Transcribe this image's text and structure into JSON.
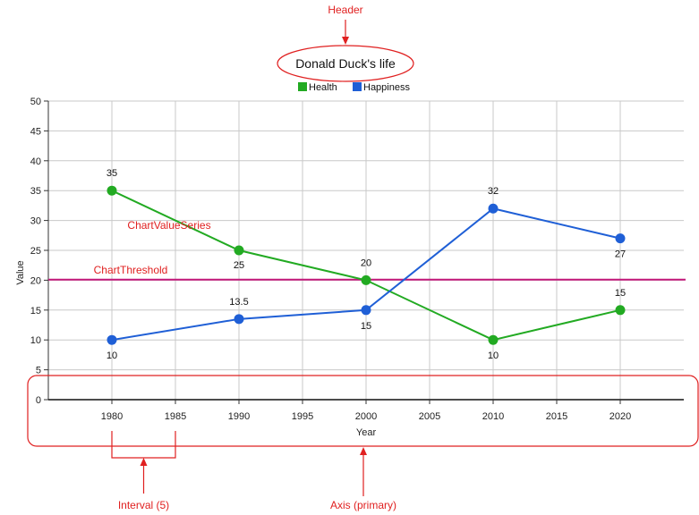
{
  "chart_data": {
    "type": "line",
    "title": "Donald Duck's life",
    "xlabel": "Year",
    "ylabel": "Value",
    "xlim": [
      1975,
      2025
    ],
    "ylim": [
      0,
      50
    ],
    "x_ticks": [
      "1980",
      "1985",
      "1990",
      "1995",
      "2000",
      "2005",
      "2010",
      "2015",
      "2020"
    ],
    "y_ticks": [
      "0",
      "5",
      "10",
      "15",
      "20",
      "25",
      "30",
      "35",
      "40",
      "45",
      "50"
    ],
    "grid": true,
    "legend_position": "top-center",
    "series": [
      {
        "name": "Health",
        "color": "#22aa22",
        "x": [
          1980,
          1990,
          2000,
          2010,
          2020
        ],
        "values": [
          35,
          25,
          20,
          10,
          15
        ],
        "labels": [
          "35",
          "25",
          "20",
          "10",
          "15"
        ]
      },
      {
        "name": "Happiness",
        "color": "#1f5fd6",
        "x": [
          1980,
          1990,
          2000,
          2010,
          2020
        ],
        "values": [
          10,
          13.5,
          15,
          32,
          27
        ],
        "labels": [
          "10",
          "13.5",
          "15",
          "32",
          "27"
        ]
      }
    ],
    "threshold": {
      "value": 20.1,
      "color": "#c2187a"
    }
  },
  "annotations": {
    "color": "#e02020",
    "header": "Header",
    "series": "ChartValueSeries",
    "threshold": "ChartThreshold",
    "interval": "Interval (5)",
    "axis": "Axis (primary)"
  }
}
